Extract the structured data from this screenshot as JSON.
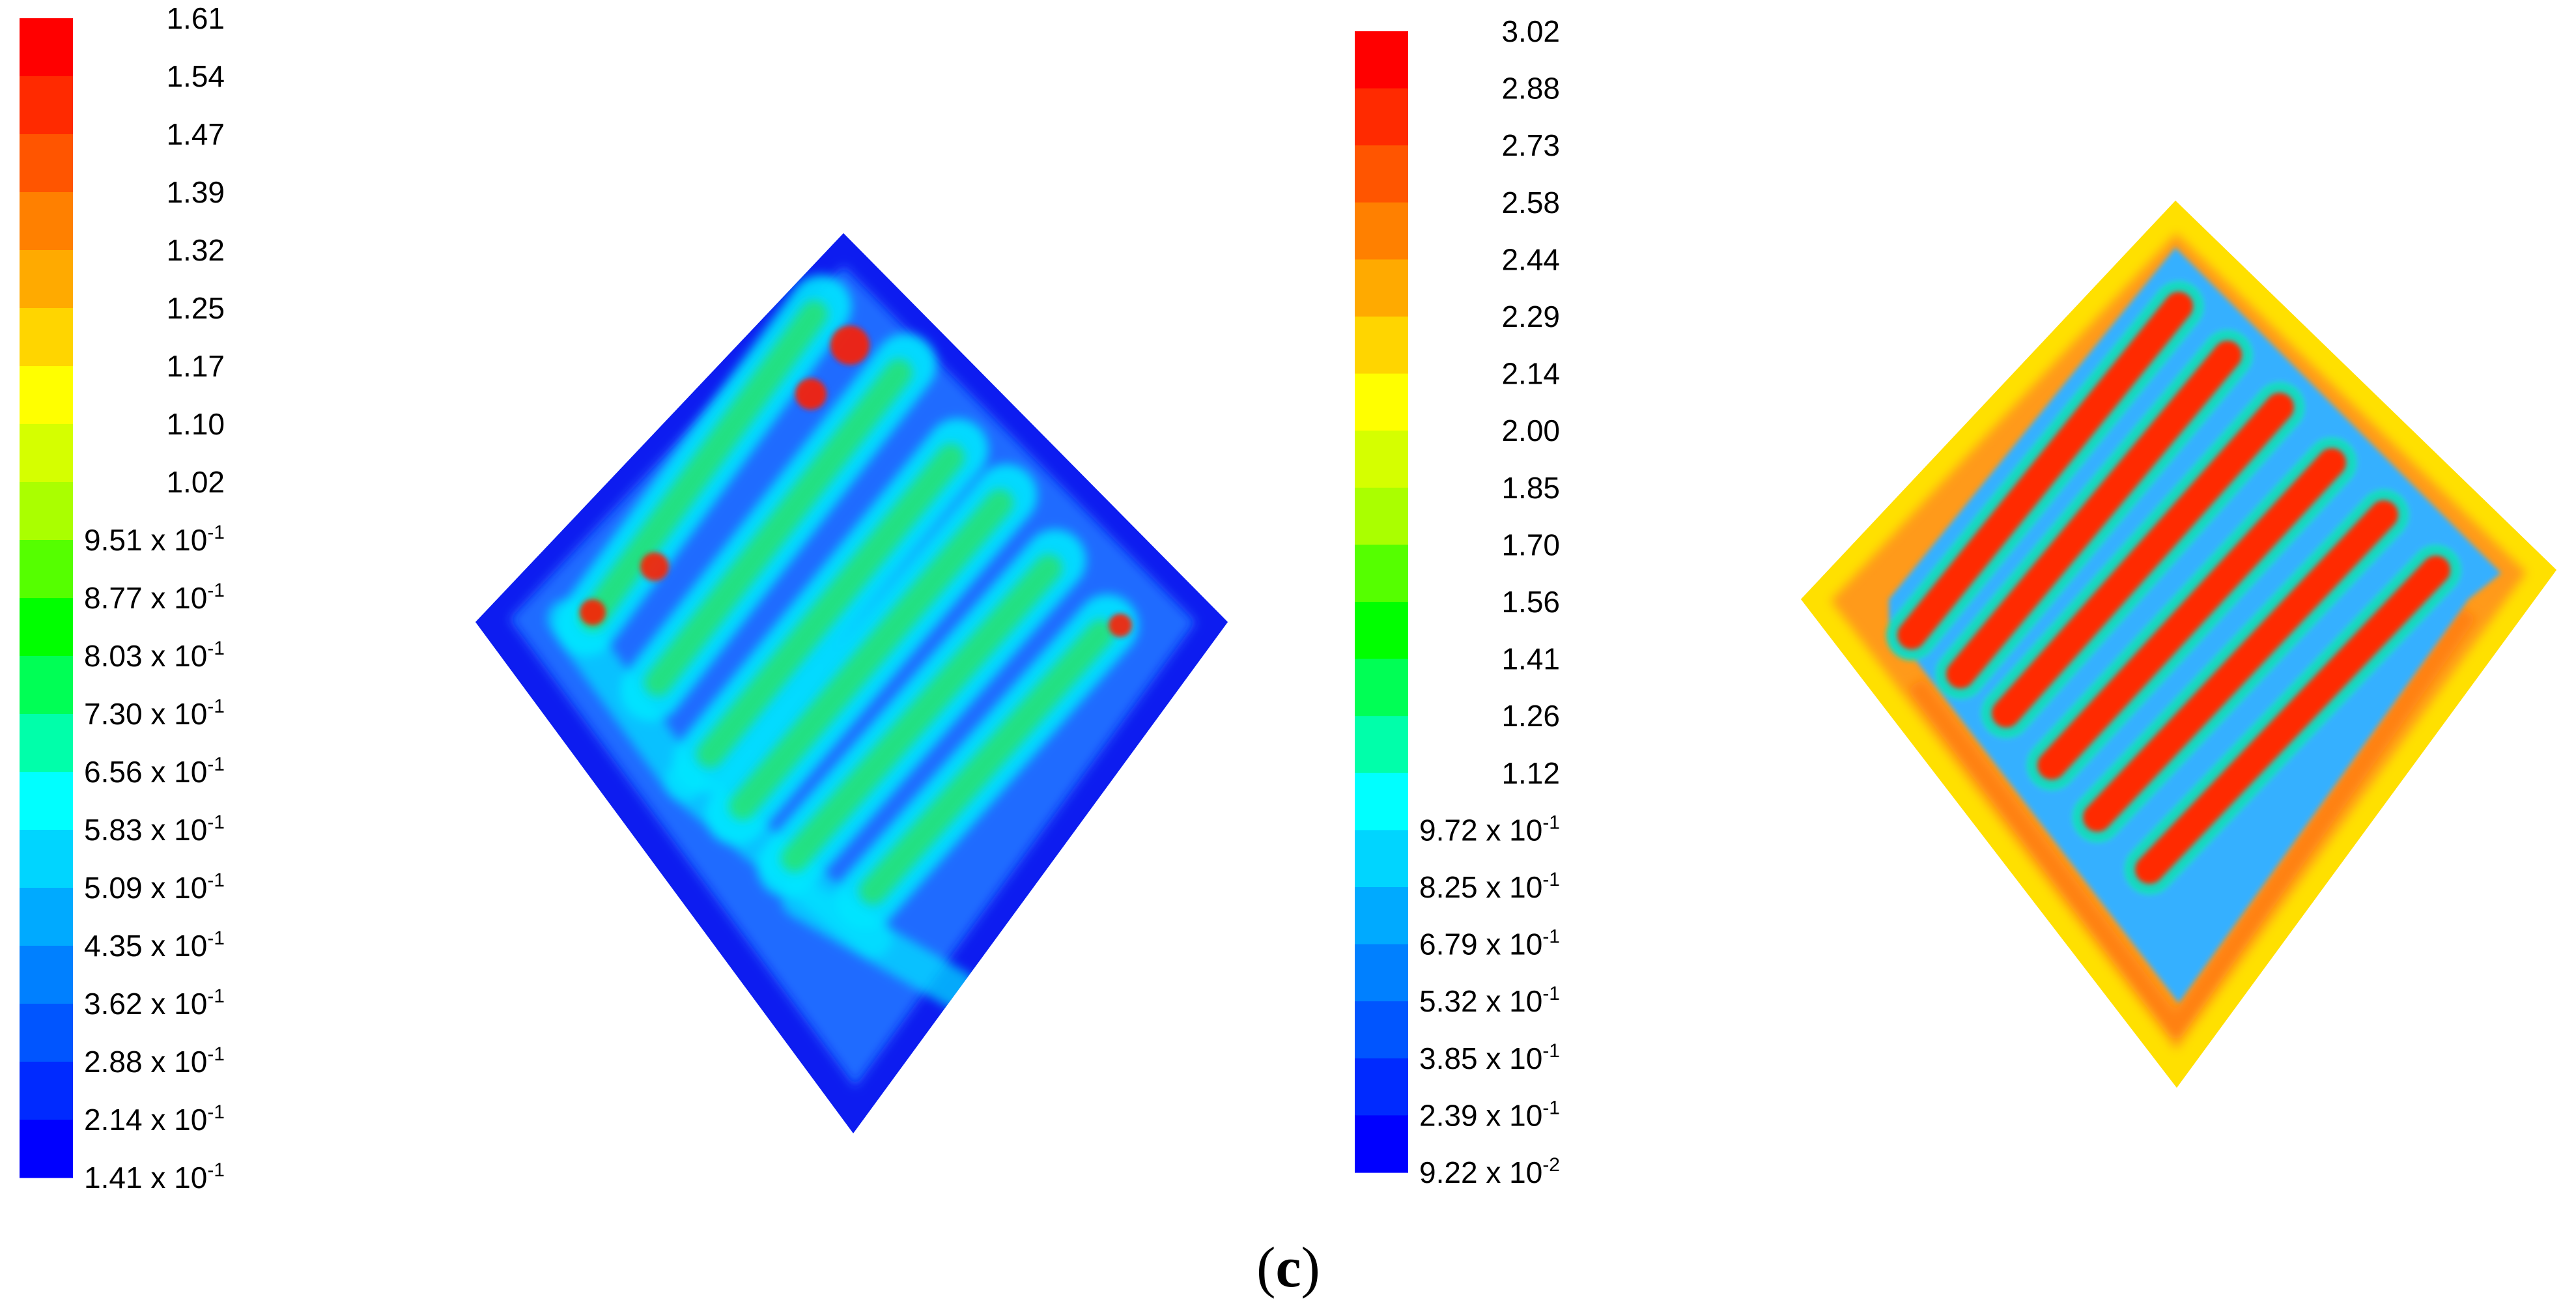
{
  "figure": {
    "caption_open": "(",
    "caption_letter": "c",
    "caption_close": ")"
  },
  "legend_left": {
    "colors": [
      "#ff0000",
      "#ff2a00",
      "#ff5500",
      "#ff8000",
      "#ffaa00",
      "#ffd500",
      "#ffff00",
      "#d5ff00",
      "#aaff00",
      "#55ff00",
      "#00ff00",
      "#00ff55",
      "#00ffaa",
      "#00ffff",
      "#00d5ff",
      "#00aaff",
      "#0080ff",
      "#0055ff",
      "#002aff",
      "#0000ff"
    ],
    "labels": [
      "1.61",
      "1.54",
      "1.47",
      "1.39",
      "1.32",
      "1.25",
      "1.17",
      "1.10",
      "1.02",
      "9.51 x 10-1",
      "8.77 x 10-1",
      "8.03 x 10-1",
      "7.30 x 10-1",
      "6.56 x 10-1",
      "5.83 x 10-1",
      "5.09 x 10-1",
      "4.35 x 10-1",
      "3.62 x 10-1",
      "2.88 x 10-1",
      "2.14 x 10-1",
      "1.41 x 10-1"
    ]
  },
  "legend_right": {
    "colors": [
      "#ff0000",
      "#ff2a00",
      "#ff5500",
      "#ff8000",
      "#ffaa00",
      "#ffd500",
      "#ffff00",
      "#d5ff00",
      "#aaff00",
      "#55ff00",
      "#00ff00",
      "#00ff55",
      "#00ffaa",
      "#00ffff",
      "#00d5ff",
      "#00aaff",
      "#0080ff",
      "#0055ff",
      "#002aff",
      "#0000ff"
    ],
    "labels": [
      "3.02",
      "2.88",
      "2.73",
      "2.58",
      "2.44",
      "2.29",
      "2.14",
      "2.00",
      "1.85",
      "1.70",
      "1.56",
      "1.41",
      "1.26",
      "1.12",
      "9.72 x 10-1",
      "8.25 x 10-1",
      "6.79 x 10-1",
      "5.32 x 10-1",
      "3.85 x 10-1",
      "2.39 x 10-1",
      "9.22 x 10-2"
    ]
  },
  "field_left": {
    "background_color": "#1f6bff",
    "edge_color": "#0a1cf0",
    "channel_color": "#00e6ff",
    "core_color": "#2fe35a",
    "hotspot_color": "#ff2000"
  },
  "field_right": {
    "background_color": "#ff9a1a",
    "border_color": "#ffe000",
    "channel_color": "#35b0ff",
    "core_color": "#ff2a00"
  }
}
